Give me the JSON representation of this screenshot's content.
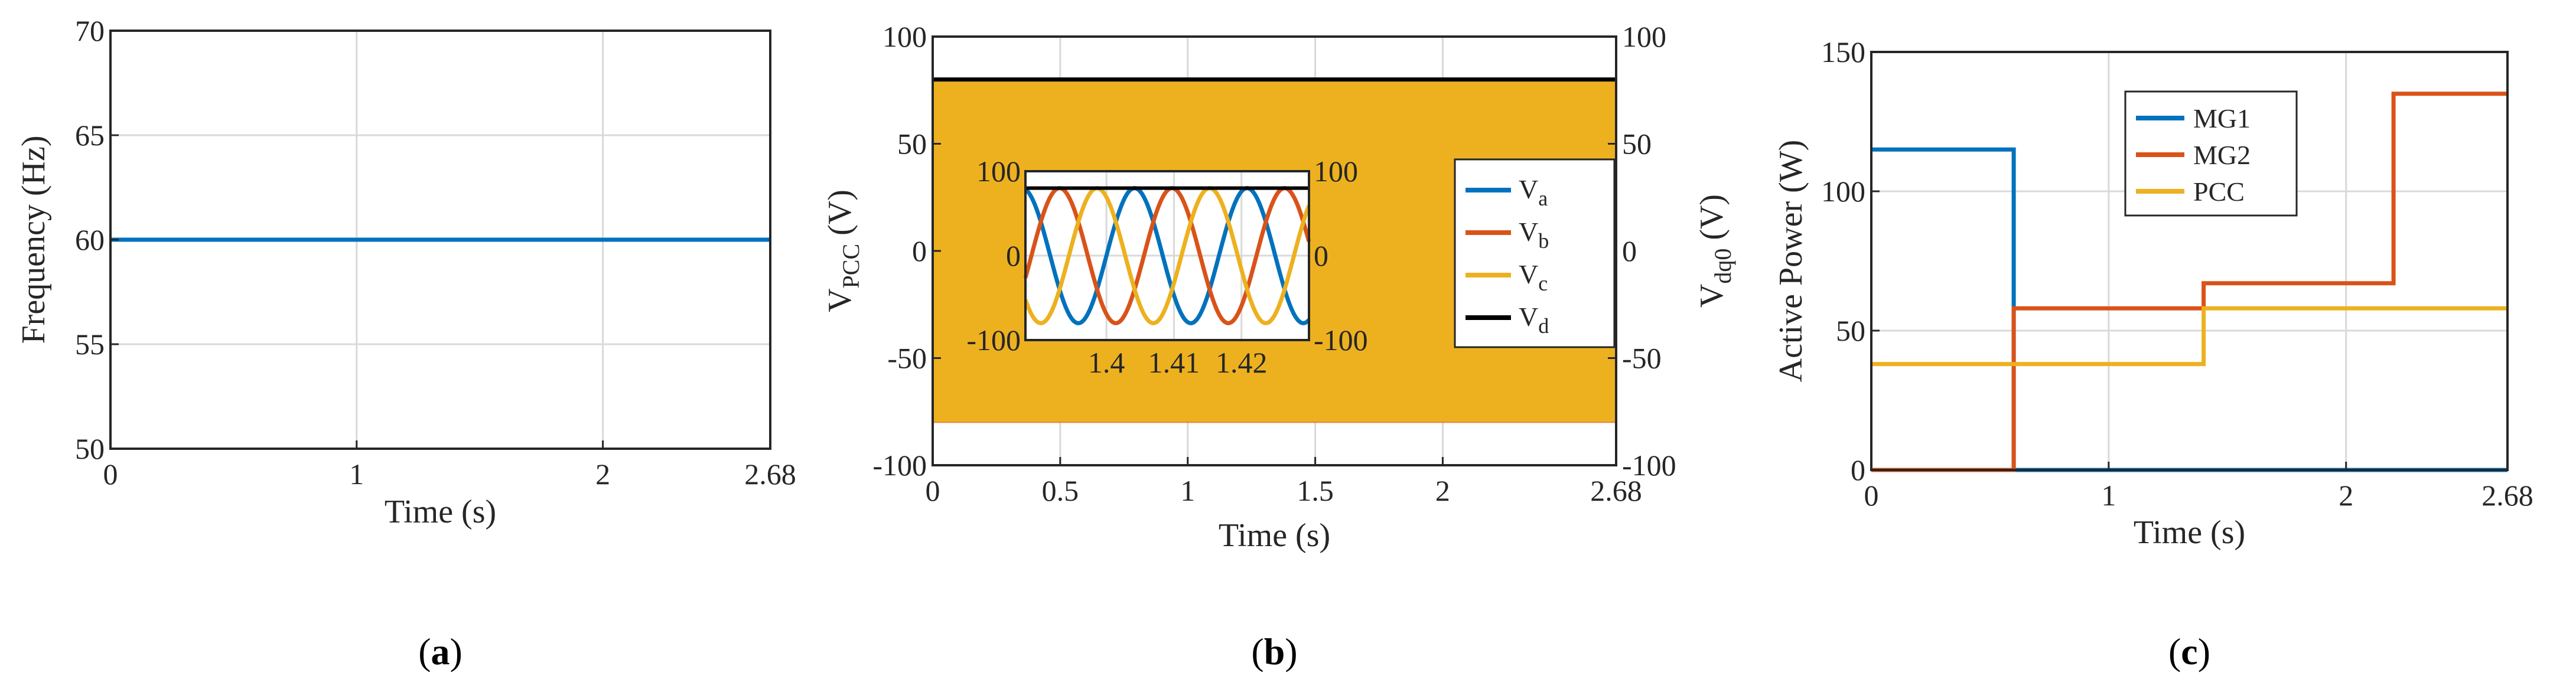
{
  "colors": {
    "blue": "#0072BD",
    "orange": "#D95319",
    "yellow": "#EDB120",
    "black": "#000000"
  },
  "chart_data": [
    {
      "panel": "(a)",
      "panel_letter": "a",
      "type": "line",
      "xlabel": "Time (s)",
      "ylabel": "Frequency (Hz)",
      "xlim": [
        0,
        2.68
      ],
      "ylim": [
        50,
        70
      ],
      "xticks": [
        0,
        1,
        2,
        2.68
      ],
      "xtick_labels": [
        "0",
        "1",
        "2",
        "2.68"
      ],
      "yticks": [
        50,
        55,
        60,
        65,
        70
      ],
      "ytick_labels": [
        "50",
        "55",
        "60",
        "65",
        "70"
      ],
      "grid": true,
      "series": [
        {
          "color": "blue",
          "x": [
            0,
            2.68
          ],
          "y": [
            60,
            60
          ]
        }
      ]
    },
    {
      "panel": "(b)",
      "panel_letter": "b",
      "type": "line",
      "xlabel": "Time (s)",
      "ylabel_main": "V",
      "ylabel_sub": "PCC",
      "ylabel_unit": " (V)",
      "ylabel_right_main": "V",
      "ylabel_right_sub": "dq0",
      "ylabel_right_unit": " (V)",
      "xlim": [
        0,
        2.68
      ],
      "ylim": [
        -100,
        100
      ],
      "xticks": [
        0,
        0.5,
        1,
        1.5,
        2,
        2.68
      ],
      "xtick_labels": [
        "0",
        "0.5",
        "1",
        "1.5",
        "2",
        "2.68"
      ],
      "yticks": [
        -100,
        -50,
        0,
        50,
        100
      ],
      "ytick_labels": [
        "-100",
        "-50",
        "0",
        "50",
        "100"
      ],
      "grid": true,
      "amplitude": 80,
      "frequency_hz": 60,
      "vd": 80,
      "legend": {
        "placement": "right",
        "entries": [
          {
            "main": "V",
            "sub": "a",
            "color": "blue"
          },
          {
            "main": "V",
            "sub": "b",
            "color": "orange"
          },
          {
            "main": "V",
            "sub": "c",
            "color": "yellow"
          },
          {
            "main": "V",
            "sub": "d",
            "color": "black"
          }
        ]
      },
      "inset": {
        "xlim": [
          1.388,
          1.43
        ],
        "ylim": [
          -100,
          100
        ],
        "xticks": [
          1.4,
          1.41,
          1.42
        ],
        "xtick_labels": [
          "1.4",
          "1.41",
          "1.42"
        ],
        "yticks": [
          -100,
          0,
          100
        ],
        "ytick_labels": [
          "-100",
          "0",
          "100"
        ],
        "right_ytick_labels": [
          "-100",
          "0",
          "100"
        ]
      }
    },
    {
      "panel": "(c)",
      "panel_letter": "c",
      "type": "line",
      "xlabel": "Time (s)",
      "ylabel": "Active Power (W)",
      "xlim": [
        0,
        2.68
      ],
      "ylim": [
        0,
        150
      ],
      "xticks": [
        0,
        1,
        2,
        2.68
      ],
      "xtick_labels": [
        "0",
        "1",
        "2",
        "2.68"
      ],
      "yticks": [
        0,
        50,
        100,
        150
      ],
      "ytick_labels": [
        "0",
        "50",
        "100",
        "150"
      ],
      "grid": true,
      "legend": {
        "placement": "top-center"
      },
      "series": [
        {
          "name": "MG1",
          "color": "blue",
          "x": [
            0,
            0.6,
            0.6,
            2.2,
            2.2,
            2.68
          ],
          "y": [
            115,
            115,
            0,
            0,
            0,
            0
          ]
        },
        {
          "name": "MG2",
          "color": "orange",
          "x": [
            0,
            0.6,
            0.6,
            1.4,
            1.4,
            2.2,
            2.2,
            2.68
          ],
          "y": [
            0,
            0,
            58,
            58,
            67,
            67,
            135,
            135
          ]
        },
        {
          "name": "PCC",
          "color": "yellow",
          "x": [
            0,
            1.4,
            1.4,
            2.68
          ],
          "y": [
            38,
            38,
            58,
            58
          ]
        }
      ]
    }
  ]
}
